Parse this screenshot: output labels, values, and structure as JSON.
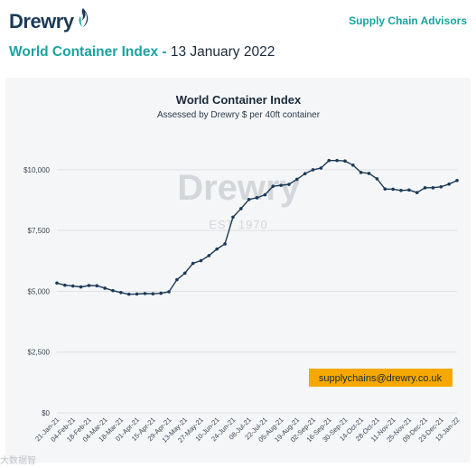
{
  "header": {
    "logo_text": "Drewry",
    "advisors_label": "Supply Chain Advisors",
    "headline_accent": "World Container Index -",
    "headline_date": "13 January 2022"
  },
  "colors": {
    "brand_teal": "#1aa3a0",
    "brand_navy": "#1b3a57",
    "line": "#1b3a57",
    "contact_badge": "#f5a800",
    "watermark": "#d3d7db"
  },
  "watermark": {
    "brand": "Drewry",
    "est": "EST 1970",
    "corner": "大数据智"
  },
  "contact": {
    "email": "supplychains@drewry.co.uk"
  },
  "chart_data": {
    "type": "line",
    "title": "World Container Index",
    "subtitle": "Assessed by Drewry $ per 40ft container",
    "xlabel": "",
    "ylabel": "",
    "ylim": [
      0,
      11000
    ],
    "grid": true,
    "legend": "none",
    "y_ticks": [
      {
        "value": 0,
        "label": "$0"
      },
      {
        "value": 2500,
        "label": "$2,500"
      },
      {
        "value": 5000,
        "label": "$5,000"
      },
      {
        "value": 7500,
        "label": "$7,500"
      },
      {
        "value": 10000,
        "label": "$10,000"
      }
    ],
    "x_tick_labels": [
      "21-Jan-21",
      "04-Feb-21",
      "18-Feb-21",
      "04-Mar-21",
      "18-Mar-21",
      "01-Apr-21",
      "15-Apr-21",
      "29-Apr-21",
      "13-May-21",
      "27-May-21",
      "10-Jun-21",
      "24-Jun-21",
      "08-Jul-21",
      "22-Jul-21",
      "05-Aug-21",
      "19-Aug-21",
      "02-Sep-21",
      "16-Sep-21",
      "30-Sep-21",
      "14-Oct-21",
      "28-Oct-21",
      "11-Nov-21",
      "25-Nov-21",
      "09-Dec-21",
      "23-Dec-21",
      "13-Jan-22"
    ],
    "series": [
      {
        "values": [
          5340,
          5250,
          5220,
          5180,
          5240,
          5230,
          5130,
          5030,
          4950,
          4880,
          4890,
          4910,
          4900,
          4920,
          4980,
          5480,
          5750,
          6150,
          6260,
          6470,
          6740,
          6950,
          8050,
          8400,
          8780,
          8850,
          8970,
          9320,
          9360,
          9400,
          9610,
          9840,
          10000,
          10070,
          10380,
          10380,
          10360,
          10190,
          9890,
          9850,
          9630,
          9210,
          9200,
          9150,
          9170,
          9060,
          9260,
          9260,
          9300,
          9410,
          9560
        ]
      }
    ]
  }
}
